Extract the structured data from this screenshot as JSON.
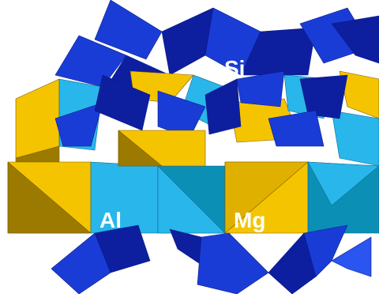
{
  "labels": {
    "si": "Si",
    "al": "Al",
    "mg": "Mg"
  },
  "colors": {
    "background": "#ffffff",
    "tetrahedra_dark": "#0d1f9e",
    "tetrahedra_mid": "#1a3cd6",
    "tetrahedra_light": "#2a55f0",
    "octahedra_cyan_light": "#29b6ea",
    "octahedra_cyan_dark": "#0c8fb5",
    "octahedra_gold_light": "#f5c400",
    "octahedra_gold_dark": "#9c7a00",
    "label_text": "#ffffff"
  },
  "legend": [
    {
      "label_key": "si",
      "shape": "tetrahedron",
      "color": "#1a3cd6"
    },
    {
      "label_key": "al",
      "shape": "octahedron",
      "color": "#f5c400"
    },
    {
      "label_key": "mg",
      "shape": "octahedron",
      "color": "#f5c400"
    }
  ]
}
